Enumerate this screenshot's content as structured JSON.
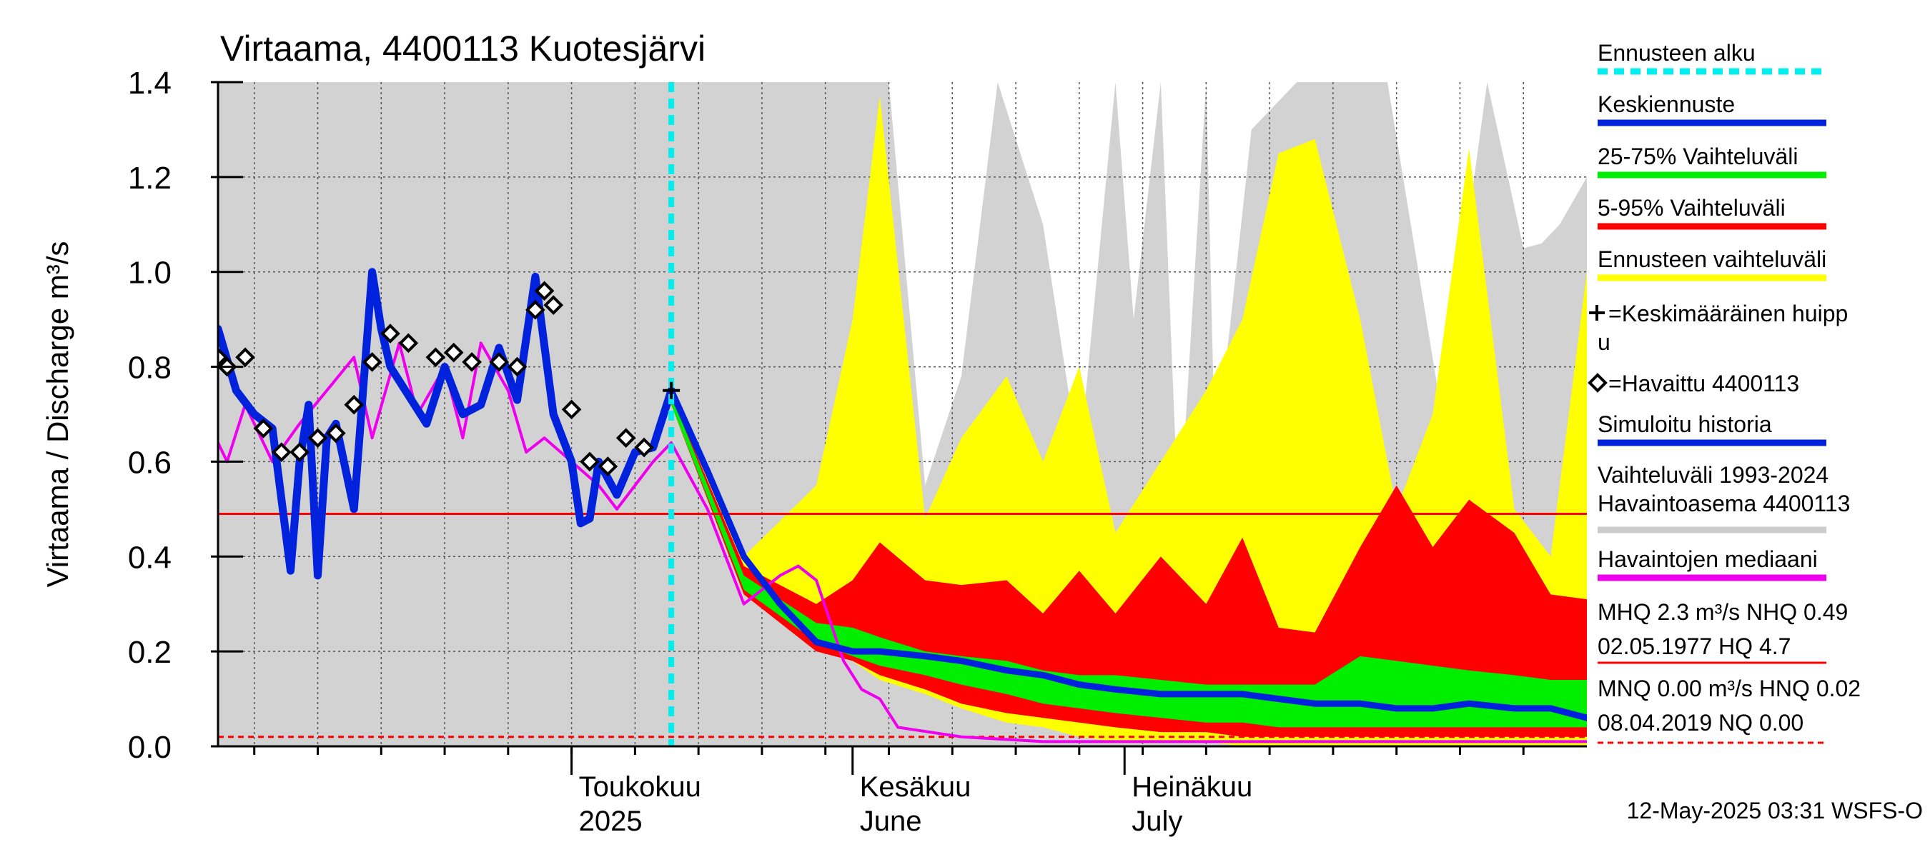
{
  "chart_data": {
    "type": "area",
    "title": "Virtaama, 4400113 Kuotesjärvi",
    "ylabel": "Virtaama / Discharge   m³/s",
    "ylim": [
      0.0,
      1.4
    ],
    "yticks": [
      "0.0",
      "0.2",
      "0.4",
      "0.6",
      "0.8",
      "1.0",
      "1.2",
      "1.4"
    ],
    "xlim": [
      "2025-03-23",
      "2025-08-21"
    ],
    "month_labels": [
      {
        "fi": "Toukokuu",
        "en": "2025",
        "date": "2025-05-01"
      },
      {
        "fi": "Kesäkuu",
        "en": "June",
        "date": "2025-06-01"
      },
      {
        "fi": "Heinäkuu",
        "en": "July",
        "date": "2025-07-01"
      }
    ],
    "forecast_start": "2025-05-12",
    "reference_lines": {
      "MHQ_line": 0.49,
      "MNQ_line": 0.02
    },
    "history_range": {
      "name": "Vaihteluväli 1993-2024",
      "x": [
        "2025-03-23",
        "2025-05-31",
        "2025-06-05",
        "2025-06-09",
        "2025-06-13",
        "2025-06-17",
        "2025-06-22",
        "2025-06-26",
        "2025-06-30",
        "2025-07-02",
        "2025-07-05",
        "2025-07-07",
        "2025-07-10",
        "2025-07-11",
        "2025-07-15",
        "2025-07-20",
        "2025-07-25",
        "2025-07-30",
        "2025-08-05",
        "2025-08-10",
        "2025-08-14",
        "2025-08-16",
        "2025-08-18",
        "2025-08-21"
      ],
      "low": [
        0.0,
        0.0,
        0.0,
        0.0,
        0.0,
        0.0,
        0.0,
        0.0,
        0.0,
        0.0,
        0.0,
        0.0,
        0.0,
        0.0,
        0.0,
        0.0,
        0.0,
        0.0,
        0.0,
        0.0,
        0.0,
        0.0,
        0.0,
        0.0
      ],
      "high": [
        1.4,
        1.4,
        1.4,
        0.55,
        0.78,
        1.4,
        1.1,
        0.6,
        1.4,
        0.9,
        1.4,
        0.45,
        1.4,
        0.6,
        1.3,
        1.4,
        1.4,
        1.4,
        0.7,
        1.4,
        1.05,
        1.06,
        1.1,
        1.2
      ]
    },
    "forecast_range_5_95_outer": {
      "name": "Ennusteen vaihteluväli",
      "x": [
        "2025-05-12",
        "2025-05-20",
        "2025-05-28",
        "2025-06-01",
        "2025-06-04",
        "2025-06-09",
        "2025-06-13",
        "2025-06-18",
        "2025-06-22",
        "2025-06-26",
        "2025-06-30",
        "2025-07-05",
        "2025-07-10",
        "2025-07-14",
        "2025-07-18",
        "2025-07-22",
        "2025-07-27",
        "2025-07-31",
        "2025-08-04",
        "2025-08-08",
        "2025-08-13",
        "2025-08-17",
        "2025-08-21"
      ],
      "high": [
        0.74,
        0.4,
        0.55,
        0.9,
        1.37,
        0.48,
        0.65,
        0.78,
        0.6,
        0.8,
        0.45,
        0.6,
        0.75,
        0.9,
        1.25,
        1.28,
        0.9,
        0.5,
        0.7,
        1.26,
        0.5,
        0.4,
        1.0
      ],
      "low": [
        0.72,
        0.32,
        0.22,
        0.18,
        0.14,
        0.11,
        0.08,
        0.05,
        0.04,
        0.02,
        0.01,
        0.01,
        0.01,
        0.0,
        0.0,
        0.0,
        0.0,
        0.0,
        0.0,
        0.0,
        0.0,
        0.0,
        0.0
      ]
    },
    "forecast_range_5_95": {
      "name": "5-95% Vaihteluväli",
      "x": [
        "2025-05-12",
        "2025-05-20",
        "2025-05-28",
        "2025-06-01",
        "2025-06-04",
        "2025-06-09",
        "2025-06-13",
        "2025-06-18",
        "2025-06-22",
        "2025-06-26",
        "2025-06-30",
        "2025-07-05",
        "2025-07-10",
        "2025-07-14",
        "2025-07-18",
        "2025-07-22",
        "2025-07-27",
        "2025-07-31",
        "2025-08-04",
        "2025-08-08",
        "2025-08-13",
        "2025-08-17",
        "2025-08-21"
      ],
      "high": [
        0.74,
        0.38,
        0.3,
        0.35,
        0.43,
        0.35,
        0.34,
        0.35,
        0.28,
        0.37,
        0.28,
        0.4,
        0.3,
        0.44,
        0.25,
        0.24,
        0.42,
        0.55,
        0.42,
        0.52,
        0.45,
        0.32,
        0.31
      ],
      "low": [
        0.72,
        0.32,
        0.2,
        0.18,
        0.15,
        0.12,
        0.09,
        0.07,
        0.06,
        0.05,
        0.04,
        0.03,
        0.03,
        0.02,
        0.02,
        0.02,
        0.02,
        0.02,
        0.02,
        0.02,
        0.02,
        0.02,
        0.02
      ]
    },
    "forecast_range_25_75": {
      "name": "25-75% Vaihteluväli",
      "x": [
        "2025-05-12",
        "2025-05-20",
        "2025-05-28",
        "2025-06-01",
        "2025-06-04",
        "2025-06-09",
        "2025-06-13",
        "2025-06-18",
        "2025-06-22",
        "2025-06-26",
        "2025-06-30",
        "2025-07-05",
        "2025-07-10",
        "2025-07-14",
        "2025-07-18",
        "2025-07-22",
        "2025-07-27",
        "2025-07-31",
        "2025-08-04",
        "2025-08-08",
        "2025-08-13",
        "2025-08-17",
        "2025-08-21"
      ],
      "high": [
        0.74,
        0.36,
        0.26,
        0.25,
        0.23,
        0.2,
        0.19,
        0.18,
        0.16,
        0.15,
        0.15,
        0.14,
        0.13,
        0.13,
        0.13,
        0.13,
        0.19,
        0.18,
        0.17,
        0.16,
        0.15,
        0.14,
        0.14
      ],
      "low": [
        0.72,
        0.33,
        0.22,
        0.19,
        0.17,
        0.15,
        0.13,
        0.11,
        0.09,
        0.08,
        0.07,
        0.06,
        0.05,
        0.05,
        0.04,
        0.04,
        0.04,
        0.04,
        0.04,
        0.04,
        0.04,
        0.04,
        0.04
      ]
    },
    "series": [
      {
        "name": "Keskiennuste",
        "color": "#0022dd",
        "x": [
          "2025-05-12",
          "2025-05-16",
          "2025-05-20",
          "2025-05-24",
          "2025-05-28",
          "2025-06-01",
          "2025-06-04",
          "2025-06-09",
          "2025-06-13",
          "2025-06-18",
          "2025-06-22",
          "2025-06-26",
          "2025-06-30",
          "2025-07-05",
          "2025-07-10",
          "2025-07-14",
          "2025-07-18",
          "2025-07-22",
          "2025-07-27",
          "2025-07-31",
          "2025-08-04",
          "2025-08-08",
          "2025-08-13",
          "2025-08-17",
          "2025-08-21"
        ],
        "y": [
          0.75,
          0.58,
          0.4,
          0.3,
          0.22,
          0.2,
          0.2,
          0.19,
          0.18,
          0.16,
          0.15,
          0.13,
          0.12,
          0.11,
          0.11,
          0.11,
          0.1,
          0.09,
          0.09,
          0.08,
          0.08,
          0.09,
          0.08,
          0.08,
          0.06
        ]
      },
      {
        "name": "Simuloitu historia",
        "color": "#0022dd",
        "x": [
          "2025-03-23",
          "2025-03-25",
          "2025-03-27",
          "2025-03-29",
          "2025-03-31",
          "2025-04-01",
          "2025-04-02",
          "2025-04-03",
          "2025-04-04",
          "2025-04-05",
          "2025-04-07",
          "2025-04-09",
          "2025-04-10",
          "2025-04-11",
          "2025-04-13",
          "2025-04-15",
          "2025-04-17",
          "2025-04-19",
          "2025-04-21",
          "2025-04-23",
          "2025-04-25",
          "2025-04-27",
          "2025-04-29",
          "2025-05-01",
          "2025-05-02",
          "2025-05-03",
          "2025-05-04",
          "2025-05-06",
          "2025-05-08",
          "2025-05-10",
          "2025-05-12"
        ],
        "y": [
          0.88,
          0.75,
          0.7,
          0.67,
          0.37,
          0.6,
          0.72,
          0.36,
          0.65,
          0.68,
          0.5,
          1.0,
          0.88,
          0.8,
          0.74,
          0.68,
          0.8,
          0.7,
          0.72,
          0.84,
          0.73,
          0.99,
          0.7,
          0.6,
          0.47,
          0.48,
          0.6,
          0.53,
          0.62,
          0.63,
          0.75
        ]
      },
      {
        "name": "Havaintojen mediaani",
        "color": "#ee00ee",
        "x": [
          "2025-03-23",
          "2025-03-24",
          "2025-03-26",
          "2025-03-29",
          "2025-04-01",
          "2025-04-04",
          "2025-04-07",
          "2025-04-09",
          "2025-04-12",
          "2025-04-14",
          "2025-04-17",
          "2025-04-19",
          "2025-04-21",
          "2025-04-24",
          "2025-04-26",
          "2025-04-28",
          "2025-05-01",
          "2025-05-04",
          "2025-05-06",
          "2025-05-08",
          "2025-05-10",
          "2025-05-12",
          "2025-05-16",
          "2025-05-20",
          "2025-05-24",
          "2025-05-26",
          "2025-05-28",
          "2025-05-31",
          "2025-06-02",
          "2025-06-04",
          "2025-06-06",
          "2025-06-13",
          "2025-06-22",
          "2025-07-05",
          "2025-07-15",
          "2025-08-21"
        ],
        "y": [
          0.64,
          0.6,
          0.72,
          0.6,
          0.68,
          0.75,
          0.82,
          0.65,
          0.85,
          0.7,
          0.8,
          0.65,
          0.85,
          0.75,
          0.62,
          0.65,
          0.6,
          0.55,
          0.5,
          0.55,
          0.6,
          0.64,
          0.5,
          0.3,
          0.36,
          0.38,
          0.35,
          0.18,
          0.12,
          0.1,
          0.04,
          0.02,
          0.01,
          0.01,
          0.01,
          0.01
        ]
      }
    ],
    "observed": {
      "name": "=Havaittu 4400113",
      "x": [
        "2025-03-23",
        "2025-03-24",
        "2025-03-26",
        "2025-03-28",
        "2025-03-30",
        "2025-04-01",
        "2025-04-03",
        "2025-04-05",
        "2025-04-07",
        "2025-04-09",
        "2025-04-11",
        "2025-04-13",
        "2025-04-16",
        "2025-04-18",
        "2025-04-20",
        "2025-04-23",
        "2025-04-25",
        "2025-04-27",
        "2025-04-28",
        "2025-04-29",
        "2025-05-01",
        "2025-05-03",
        "2025-05-05",
        "2025-05-07",
        "2025-05-09"
      ],
      "y": [
        0.82,
        0.8,
        0.82,
        0.67,
        0.62,
        0.62,
        0.65,
        0.66,
        0.72,
        0.81,
        0.87,
        0.85,
        0.82,
        0.83,
        0.81,
        0.81,
        0.8,
        0.92,
        0.96,
        0.93,
        0.71,
        0.6,
        0.59,
        0.65,
        0.63
      ]
    },
    "mean_peak": {
      "name": "=Keskimääräinen huippu",
      "x": "2025-05-12",
      "y": 0.75
    },
    "legend": [
      {
        "label": "Ennusteen alku",
        "color": "#00eeee",
        "style": "dashed"
      },
      {
        "label": "Keskiennuste",
        "color": "#0022dd",
        "style": "line"
      },
      {
        "label": "25-75% Vaihteluväli",
        "color": "#00ee00",
        "style": "line"
      },
      {
        "label": "5-95% Vaihteluväli",
        "color": "#ff0000",
        "style": "line"
      },
      {
        "label": "Ennusteen vaihteluväli",
        "color": "#ffff00",
        "style": "line"
      },
      {
        "label": "=Keskimääräinen huipp",
        "label2": "u",
        "color": "#000000",
        "style": "plus"
      },
      {
        "label": "=Havaittu 4400113",
        "color": "#000000",
        "style": "diamond"
      },
      {
        "label": "Simuloitu historia",
        "color": "#0022dd",
        "style": "line"
      },
      {
        "label": "Vaihteluväli 1993-2024",
        "label2": " Havaintoasema 4400113",
        "color": "#cccccc",
        "style": "line"
      },
      {
        "label": "Havaintojen mediaani",
        "color": "#ee00ee",
        "style": "line"
      },
      {
        "label": "MHQ  2.3 m³/s NHQ 0.49",
        "label2": "02.05.1977 HQ  4.7",
        "color": "#ff0000",
        "style": "line"
      },
      {
        "label": "MNQ 0.00 m³/s HNQ 0.02",
        "label2": "08.04.2019 NQ 0.00",
        "color": "#ff0000",
        "style": "dashed"
      }
    ],
    "footer": "12-May-2025 03:31 WSFS-O"
  }
}
